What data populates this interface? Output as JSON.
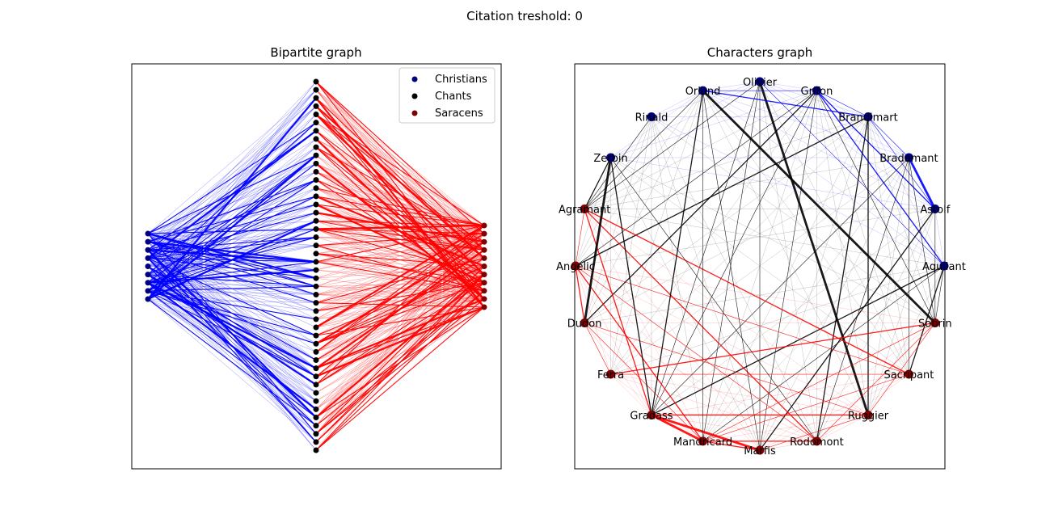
{
  "suptitle": "Citation treshold: 0",
  "left_panel": {
    "title": "Bipartite graph",
    "legend": [
      {
        "label": "Christians",
        "color": "#00007f"
      },
      {
        "label": "Chants",
        "color": "#000000"
      },
      {
        "label": "Saracens",
        "color": "#7f0000"
      }
    ],
    "counts": {
      "christians": 9,
      "chants": 46,
      "saracens": 11
    },
    "edge_colors": {
      "christian": "#0000ff",
      "saracen": "#ff0000"
    }
  },
  "right_panel": {
    "title": "Characters graph",
    "colors": {
      "christian_node": "#00007f",
      "saracen_node": "#7f0000",
      "mixed_edge": "#000000",
      "christian_edge": "#0000ff",
      "saracen_edge": "#ff0000"
    },
    "nodes": [
      {
        "label": "Olivier",
        "side": "christian"
      },
      {
        "label": "Grifon",
        "side": "christian"
      },
      {
        "label": "Brandimart",
        "side": "christian"
      },
      {
        "label": "Bradamant",
        "side": "christian"
      },
      {
        "label": "Astolf",
        "side": "christian"
      },
      {
        "label": "Aquilant",
        "side": "christian"
      },
      {
        "label": "Sobrin",
        "side": "saracen"
      },
      {
        "label": "Sacripant",
        "side": "saracen"
      },
      {
        "label": "Ruggier",
        "side": "saracen"
      },
      {
        "label": "Rodomont",
        "side": "saracen"
      },
      {
        "label": "Marfis",
        "side": "saracen"
      },
      {
        "label": "Mandricard",
        "side": "saracen"
      },
      {
        "label": "Gradass",
        "side": "saracen"
      },
      {
        "label": "Ferra",
        "side": "saracen"
      },
      {
        "label": "Dudon",
        "side": "saracen"
      },
      {
        "label": "Angelic",
        "side": "saracen"
      },
      {
        "label": "Agramant",
        "side": "saracen"
      },
      {
        "label": "Zerbin",
        "side": "christian"
      },
      {
        "label": "Rinald",
        "side": "christian"
      },
      {
        "label": "Orland",
        "side": "christian"
      }
    ]
  }
}
